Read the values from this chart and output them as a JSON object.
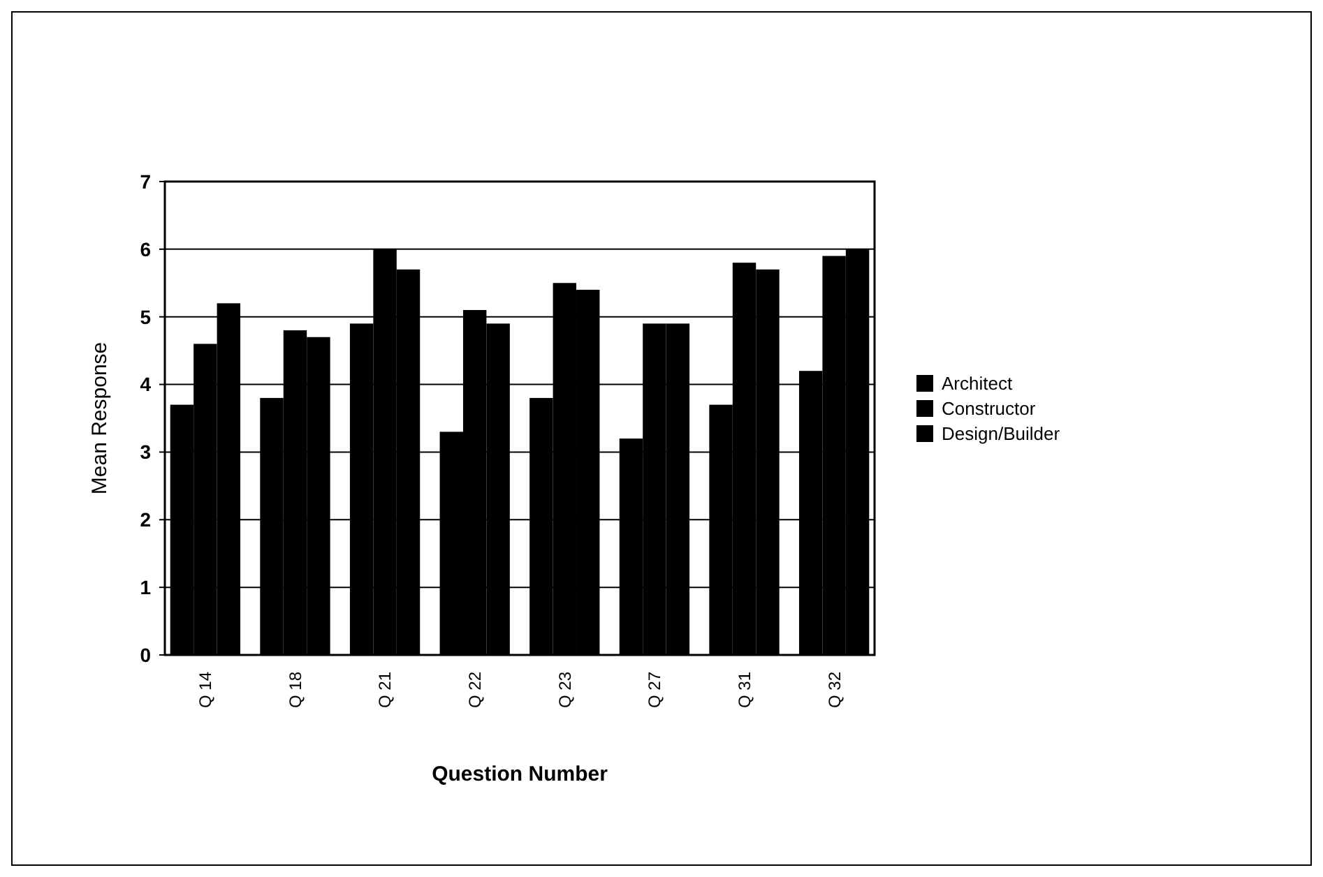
{
  "chart_data": {
    "type": "bar",
    "xlabel": "Question Number",
    "ylabel": "Mean Response",
    "categories": [
      "Q 14",
      "Q 18",
      "Q 21",
      "Q 22",
      "Q 23",
      "Q 27",
      "Q 31",
      "Q 32"
    ],
    "series": [
      {
        "name": "Architect",
        "color": "#000000",
        "values": [
          3.7,
          3.8,
          4.9,
          3.3,
          3.8,
          3.2,
          3.7,
          4.2
        ]
      },
      {
        "name": "Constructor",
        "color": "#000000",
        "values": [
          4.6,
          4.8,
          6.0,
          5.1,
          5.5,
          4.9,
          5.8,
          5.9
        ]
      },
      {
        "name": "Design/Builder",
        "color": "#000000",
        "values": [
          5.2,
          4.7,
          5.7,
          4.9,
          5.4,
          4.9,
          5.7,
          6.0
        ]
      }
    ],
    "ylim": [
      0,
      7
    ],
    "yticks": [
      0,
      1,
      2,
      3,
      4,
      5,
      6,
      7
    ],
    "grid": "y",
    "legend": "right"
  }
}
